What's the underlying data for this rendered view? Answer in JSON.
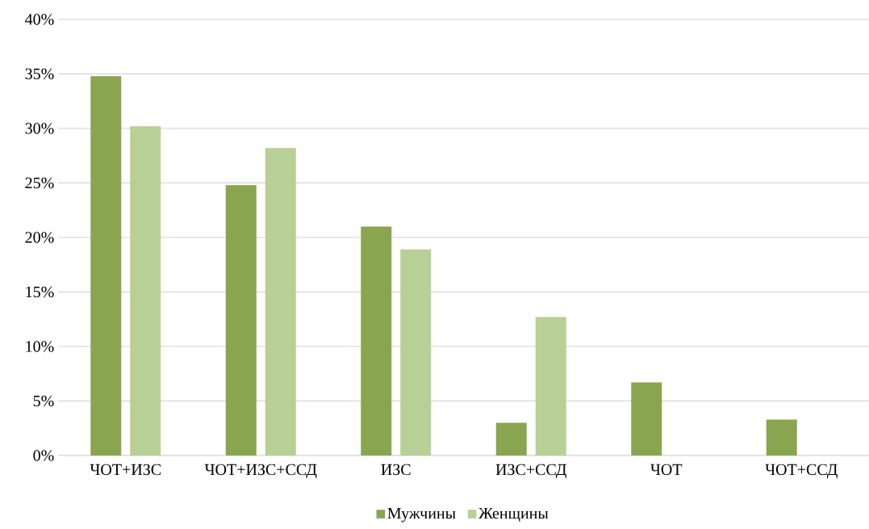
{
  "chart_data": {
    "type": "bar",
    "categories": [
      "ЧОТ+ИЗС",
      "ЧОТ+ИЗС+ССД",
      "ИЗС",
      "ИЗС+ССД",
      "ЧОТ",
      "ЧОТ+ССД"
    ],
    "series": [
      {
        "name": "Мужчины",
        "color": "#8aa550",
        "values": [
          34.8,
          24.8,
          21.0,
          3.0,
          6.7,
          3.3
        ]
      },
      {
        "name": "Женщины",
        "color": "#b8cf96",
        "values": [
          30.2,
          28.2,
          18.9,
          12.7,
          0,
          0
        ]
      }
    ],
    "ylim": [
      0,
      40
    ],
    "yticks": [
      {
        "value": 0,
        "label": "0%"
      },
      {
        "value": 5,
        "label": "5%"
      },
      {
        "value": 10,
        "label": "10%"
      },
      {
        "value": 15,
        "label": "15%"
      },
      {
        "value": 20,
        "label": "20%"
      },
      {
        "value": 25,
        "label": "25%"
      },
      {
        "value": 30,
        "label": "30%"
      },
      {
        "value": 35,
        "label": "35%"
      },
      {
        "value": 40,
        "label": "40%"
      }
    ],
    "grid": "y",
    "legend": "bottom"
  }
}
